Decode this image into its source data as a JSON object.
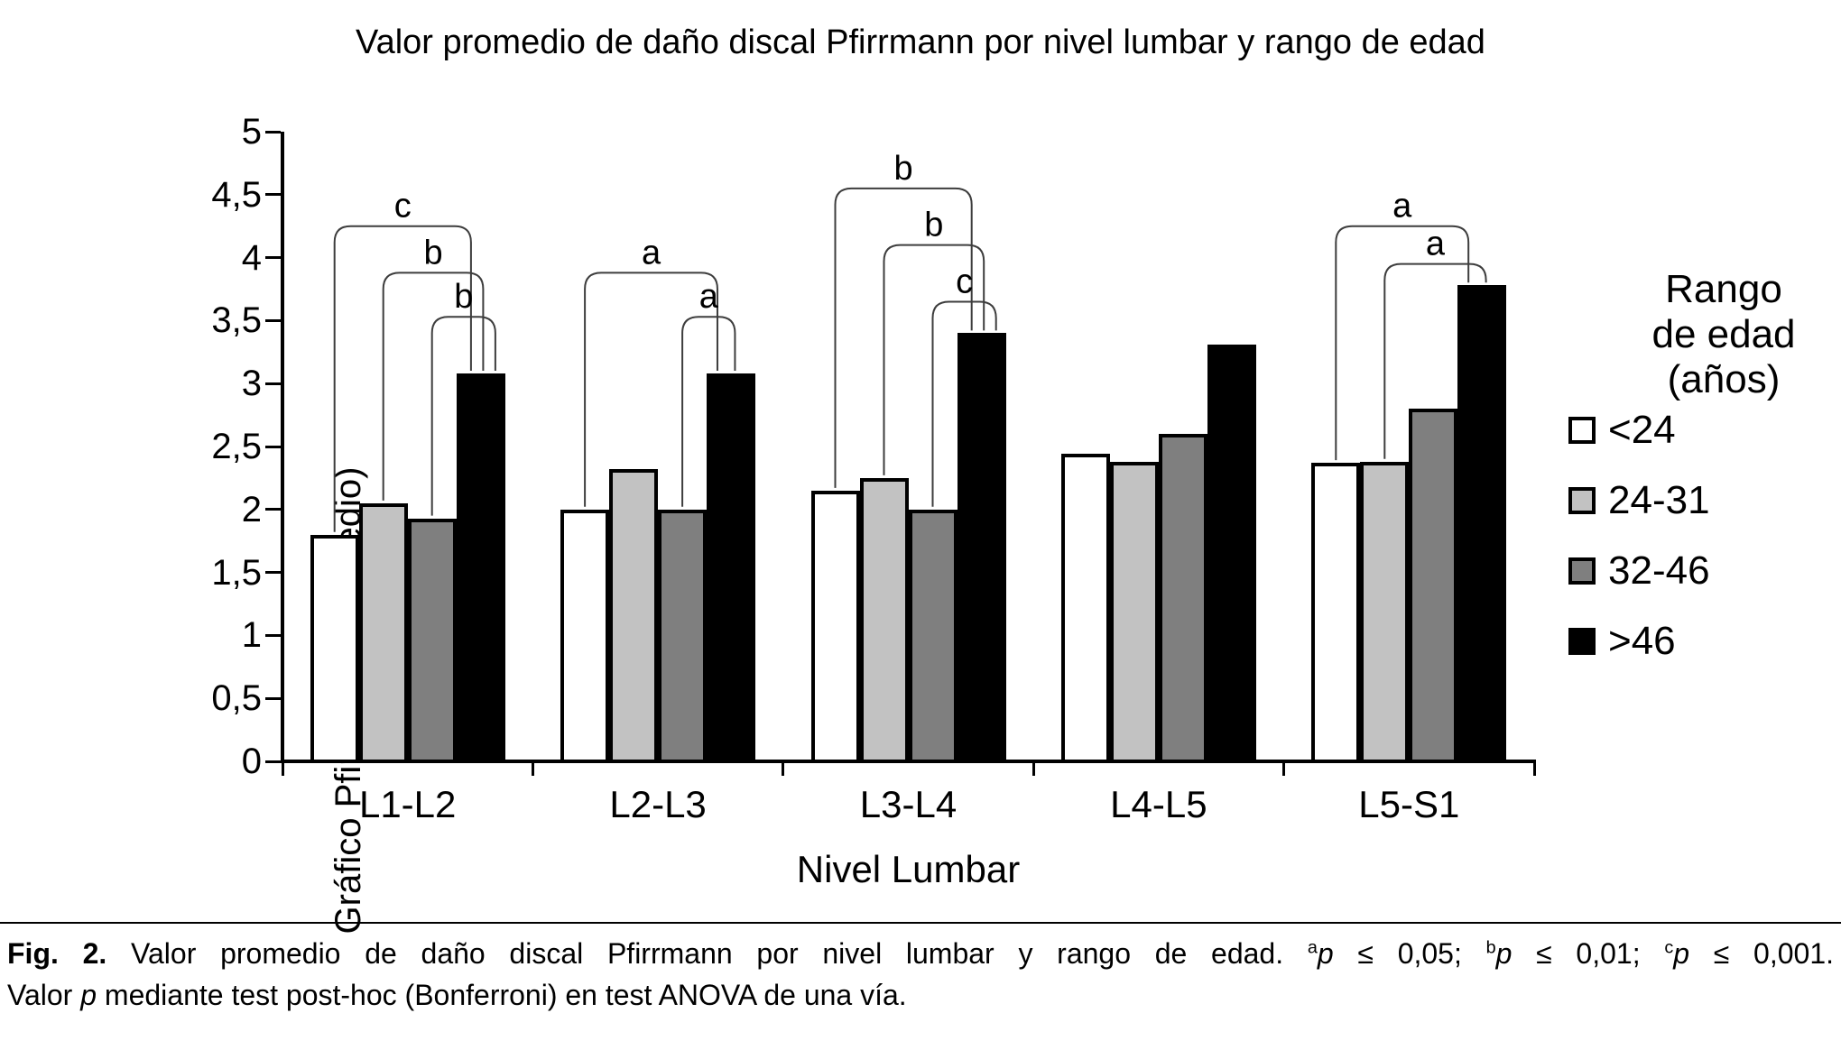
{
  "chart_data": {
    "type": "bar",
    "title": "Valor promedio de daño discal Pfirrmann por nivel lumbar y rango de edad",
    "xlabel": "Nivel Lumbar",
    "ylabel": "Gráfico Pfirrmann (promedio)",
    "ylim": [
      0,
      5
    ],
    "ytick_step": 0.5,
    "ytick_labels": [
      "0",
      "0,5",
      "1",
      "1,5",
      "2",
      "2,5",
      "3",
      "3,5",
      "4",
      "4,5",
      "5"
    ],
    "categories": [
      "L1-L2",
      "L2-L3",
      "L3-L4",
      "L4-L5",
      "L5-S1"
    ],
    "grid": false,
    "legend_position": "right",
    "legend_title_lines": [
      "Rango",
      "de edad",
      "(años)"
    ],
    "series": [
      {
        "name": "<24",
        "color": "#ffffff",
        "values": [
          1.8,
          2.0,
          2.15,
          2.44,
          2.37
        ]
      },
      {
        "name": "24-31",
        "color": "#c2c2c2",
        "values": [
          2.05,
          2.32,
          2.25,
          2.38,
          2.38
        ]
      },
      {
        "name": "32-46",
        "color": "#7f7f7f",
        "values": [
          1.93,
          2.0,
          2.0,
          2.6,
          2.8
        ]
      },
      {
        "name": ">46",
        "color": "#000000",
        "values": [
          3.08,
          3.08,
          3.4,
          3.31,
          3.78
        ]
      }
    ],
    "significance_brackets": [
      {
        "group": 0,
        "from": 0,
        "to": 3,
        "height": 4.25,
        "label": "c"
      },
      {
        "group": 0,
        "from": 1,
        "to": 3,
        "height": 3.88,
        "label": "b"
      },
      {
        "group": 0,
        "from": 2,
        "to": 3,
        "height": 3.53,
        "label": "b"
      },
      {
        "group": 1,
        "from": 0,
        "to": 3,
        "height": 3.88,
        "label": "a"
      },
      {
        "group": 1,
        "from": 2,
        "to": 3,
        "height": 3.53,
        "label": "a"
      },
      {
        "group": 2,
        "from": 0,
        "to": 3,
        "height": 4.55,
        "label": "b"
      },
      {
        "group": 2,
        "from": 1,
        "to": 3,
        "height": 4.1,
        "label": "b"
      },
      {
        "group": 2,
        "from": 2,
        "to": 3,
        "height": 3.65,
        "label": "c"
      },
      {
        "group": 4,
        "from": 0,
        "to": 3,
        "height": 4.25,
        "label": "a"
      },
      {
        "group": 4,
        "from": 1,
        "to": 3,
        "height": 3.95,
        "label": "a"
      }
    ]
  },
  "caption": {
    "line1": [
      {
        "t": "Fig. 2.",
        "s": "b"
      },
      {
        "t": " Valor promedio de daño discal Pfirrmann por nivel lumbar y rango de edad. "
      },
      {
        "t": "a",
        "s": "sup"
      },
      {
        "t": "p",
        "s": "i"
      },
      {
        "t": " ≤ 0,05; "
      },
      {
        "t": "b",
        "s": "sup"
      },
      {
        "t": "p",
        "s": "i"
      },
      {
        "t": " ≤ 0,01; "
      },
      {
        "t": "c",
        "s": "sup"
      },
      {
        "t": "p",
        "s": "i"
      },
      {
        "t": " ≤ 0,001."
      }
    ],
    "line2": [
      {
        "t": "Valor "
      },
      {
        "t": "p",
        "s": "i"
      },
      {
        "t": " mediante test post-hoc (Bonferroni) en test ANOVA de una vía."
      }
    ]
  }
}
